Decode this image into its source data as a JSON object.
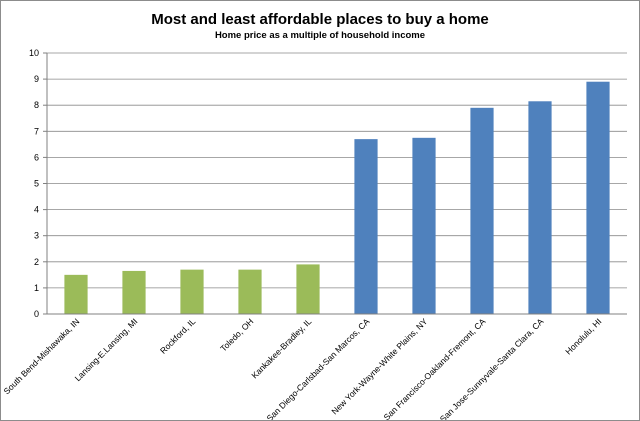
{
  "chart_data": {
    "type": "bar",
    "title": "Most and least affordable places to buy a home",
    "subtitle": "Home price as a multiple of household income",
    "xlabel": "",
    "ylabel": "",
    "ylim": [
      0,
      10
    ],
    "yticks": [
      "0",
      "1",
      "2",
      "3",
      "4",
      "5",
      "6",
      "7",
      "8",
      "9",
      "10"
    ],
    "grid": true,
    "legend": "none",
    "categories": [
      "South Bend-Mishawaka, IN",
      "Lansing-E.Lansing, MI",
      "Rockford, IL",
      "Toledo, OH",
      "Kankakee-Bradley, IL",
      "San Diego-Carlsbad-San Marcos, CA",
      "New York-Wayne-White Plains, NY",
      "San Francisco-Oakland-Fremont, CA",
      "San Jose-Sunnyvale-Santa Clara, CA",
      "Honolulu, HI"
    ],
    "values": [
      1.5,
      1.65,
      1.7,
      1.7,
      1.9,
      6.7,
      6.75,
      7.9,
      8.15,
      8.9
    ],
    "colors": [
      "#9bbb59",
      "#9bbb59",
      "#9bbb59",
      "#9bbb59",
      "#9bbb59",
      "#4f81bd",
      "#4f81bd",
      "#4f81bd",
      "#4f81bd",
      "#4f81bd"
    ]
  }
}
